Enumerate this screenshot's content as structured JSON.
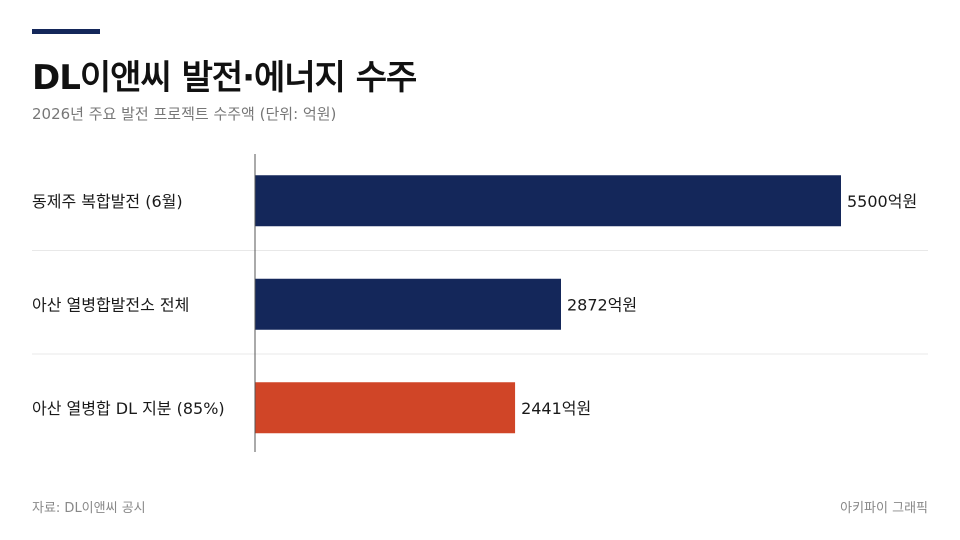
{
  "header": {
    "title": "DL이앤씨 발전·에너지 수주",
    "subtitle": "2026년 주요 발전 프로젝트 수주액 (단위: 억원)"
  },
  "footer": {
    "source": "자료: DL이앤씨 공시",
    "credit": "아키파이 그래픽"
  },
  "chart_data": {
    "type": "bar",
    "orientation": "horizontal",
    "categories": [
      "동제주 복합발전 (6월)",
      "아산 열병합발전소 전체",
      "아산 열병합 DL 지분 (85%)"
    ],
    "values": [
      5500,
      2872,
      2441
    ],
    "value_labels": [
      "5500억원",
      "2872억원",
      "2441억원"
    ],
    "bar_colors": [
      "#14275a",
      "#14275a",
      "#d04527"
    ],
    "xlim": [
      0,
      5500
    ],
    "grid": false,
    "legend": "none"
  }
}
